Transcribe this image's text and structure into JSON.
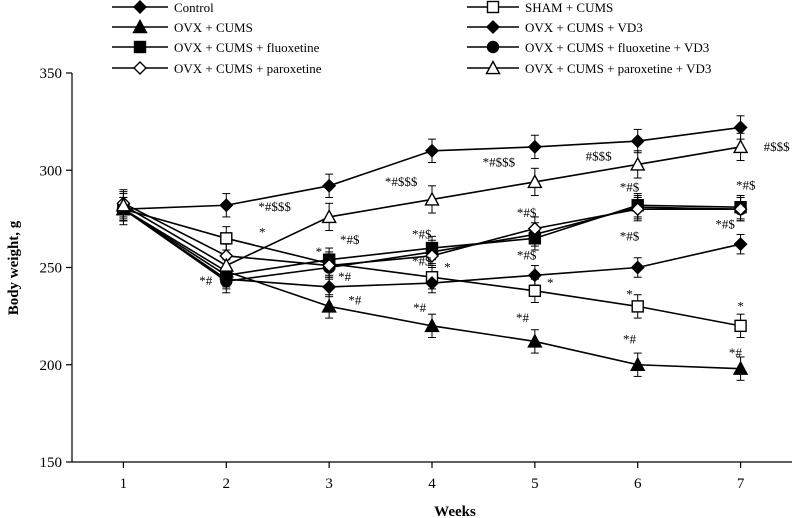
{
  "chart_data": {
    "type": "line",
    "xlabel": "Weeks",
    "ylabel": "Body weight, g",
    "x": [
      1,
      2,
      3,
      4,
      5,
      6,
      7
    ],
    "xlim": [
      0.5,
      7.5
    ],
    "ylim": [
      150,
      350
    ],
    "yticks": [
      150,
      200,
      250,
      300,
      350
    ],
    "grid": false,
    "legend_position": "top",
    "series": [
      {
        "name": "Control",
        "marker": "diamond",
        "fill": "#000000",
        "values": [
          280,
          282,
          292,
          310,
          312,
          315,
          322
        ],
        "errors": [
          6,
          6,
          6,
          6,
          6,
          6,
          6
        ]
      },
      {
        "name": "SHAM + CUMS",
        "marker": "square",
        "fill": "#ffffff",
        "values": [
          280,
          265,
          252,
          245,
          238,
          230,
          220
        ],
        "errors": [
          8,
          6,
          6,
          6,
          6,
          6,
          6
        ]
      },
      {
        "name": "OVX + CUMS",
        "marker": "triangle",
        "fill": "#000000",
        "values": [
          280,
          248,
          230,
          220,
          212,
          200,
          198
        ],
        "errors": [
          6,
          6,
          6,
          6,
          6,
          6,
          6
        ]
      },
      {
        "name": "OVX + CUMS + VD3",
        "marker": "diamond",
        "fill": "#000000",
        "values": [
          280,
          244,
          240,
          242,
          246,
          250,
          262
        ],
        "errors": [
          6,
          5,
          5,
          5,
          5,
          5,
          5
        ]
      },
      {
        "name": "OVX + CUMS + fluoxetine",
        "marker": "square",
        "fill": "#000000",
        "values": [
          280,
          246,
          254,
          260,
          265,
          282,
          281
        ],
        "errors": [
          6,
          6,
          6,
          6,
          6,
          6,
          6
        ]
      },
      {
        "name": "OVX + CUMS + fluoxetine + VD3",
        "marker": "circle",
        "fill": "#000000",
        "values": [
          280,
          243,
          250,
          258,
          267,
          281,
          280
        ],
        "errors": [
          6,
          6,
          6,
          6,
          6,
          6,
          6
        ]
      },
      {
        "name": "OVX + CUMS + paroxetine",
        "marker": "diamond",
        "fill": "#ffffff",
        "values": [
          283,
          256,
          251,
          256,
          270,
          280,
          280
        ],
        "errors": [
          7,
          6,
          6,
          6,
          6,
          6,
          6
        ]
      },
      {
        "name": "OVX + CUMS + paroxetine + VD3",
        "marker": "triangle",
        "fill": "#ffffff",
        "values": [
          282,
          251,
          276,
          285,
          294,
          303,
          312
        ],
        "errors": [
          7,
          6,
          7,
          7,
          7,
          7,
          7
        ]
      }
    ],
    "annotations": [
      {
        "text": "*",
        "x": 2.35,
        "y": 266
      },
      {
        "text": "*#",
        "x": 1.8,
        "y": 241
      },
      {
        "text": "*",
        "x": 2.9,
        "y": 256
      },
      {
        "text": "*#$",
        "x": 3.2,
        "y": 262
      },
      {
        "text": "*#",
        "x": 3.15,
        "y": 243
      },
      {
        "text": "*#",
        "x": 3.25,
        "y": 231
      },
      {
        "text": "*#$$$",
        "x": 2.47,
        "y": 279
      },
      {
        "text": "*#$$$",
        "x": 3.7,
        "y": 292
      },
      {
        "text": "*#$",
        "x": 3.9,
        "y": 265
      },
      {
        "text": "*#$",
        "x": 3.9,
        "y": 251
      },
      {
        "text": "*",
        "x": 4.15,
        "y": 248
      },
      {
        "text": "*#",
        "x": 3.88,
        "y": 227
      },
      {
        "text": "*#$$$",
        "x": 4.65,
        "y": 302
      },
      {
        "text": "*#$",
        "x": 4.92,
        "y": 276
      },
      {
        "text": "*#$",
        "x": 4.92,
        "y": 254
      },
      {
        "text": "*",
        "x": 5.15,
        "y": 240
      },
      {
        "text": "*#",
        "x": 4.88,
        "y": 222
      },
      {
        "text": "#$$$",
        "x": 5.62,
        "y": 305
      },
      {
        "text": "*#$",
        "x": 5.92,
        "y": 289
      },
      {
        "text": "*#$",
        "x": 5.92,
        "y": 264
      },
      {
        "text": "*",
        "x": 5.92,
        "y": 234
      },
      {
        "text": "*#",
        "x": 5.92,
        "y": 211
      },
      {
        "text": "#$$$",
        "x": 7.35,
        "y": 310
      },
      {
        "text": "*#$",
        "x": 7.05,
        "y": 290
      },
      {
        "text": "*#$",
        "x": 6.85,
        "y": 270
      },
      {
        "text": "*",
        "x": 7.0,
        "y": 228
      },
      {
        "text": "*#",
        "x": 6.95,
        "y": 204
      }
    ]
  }
}
